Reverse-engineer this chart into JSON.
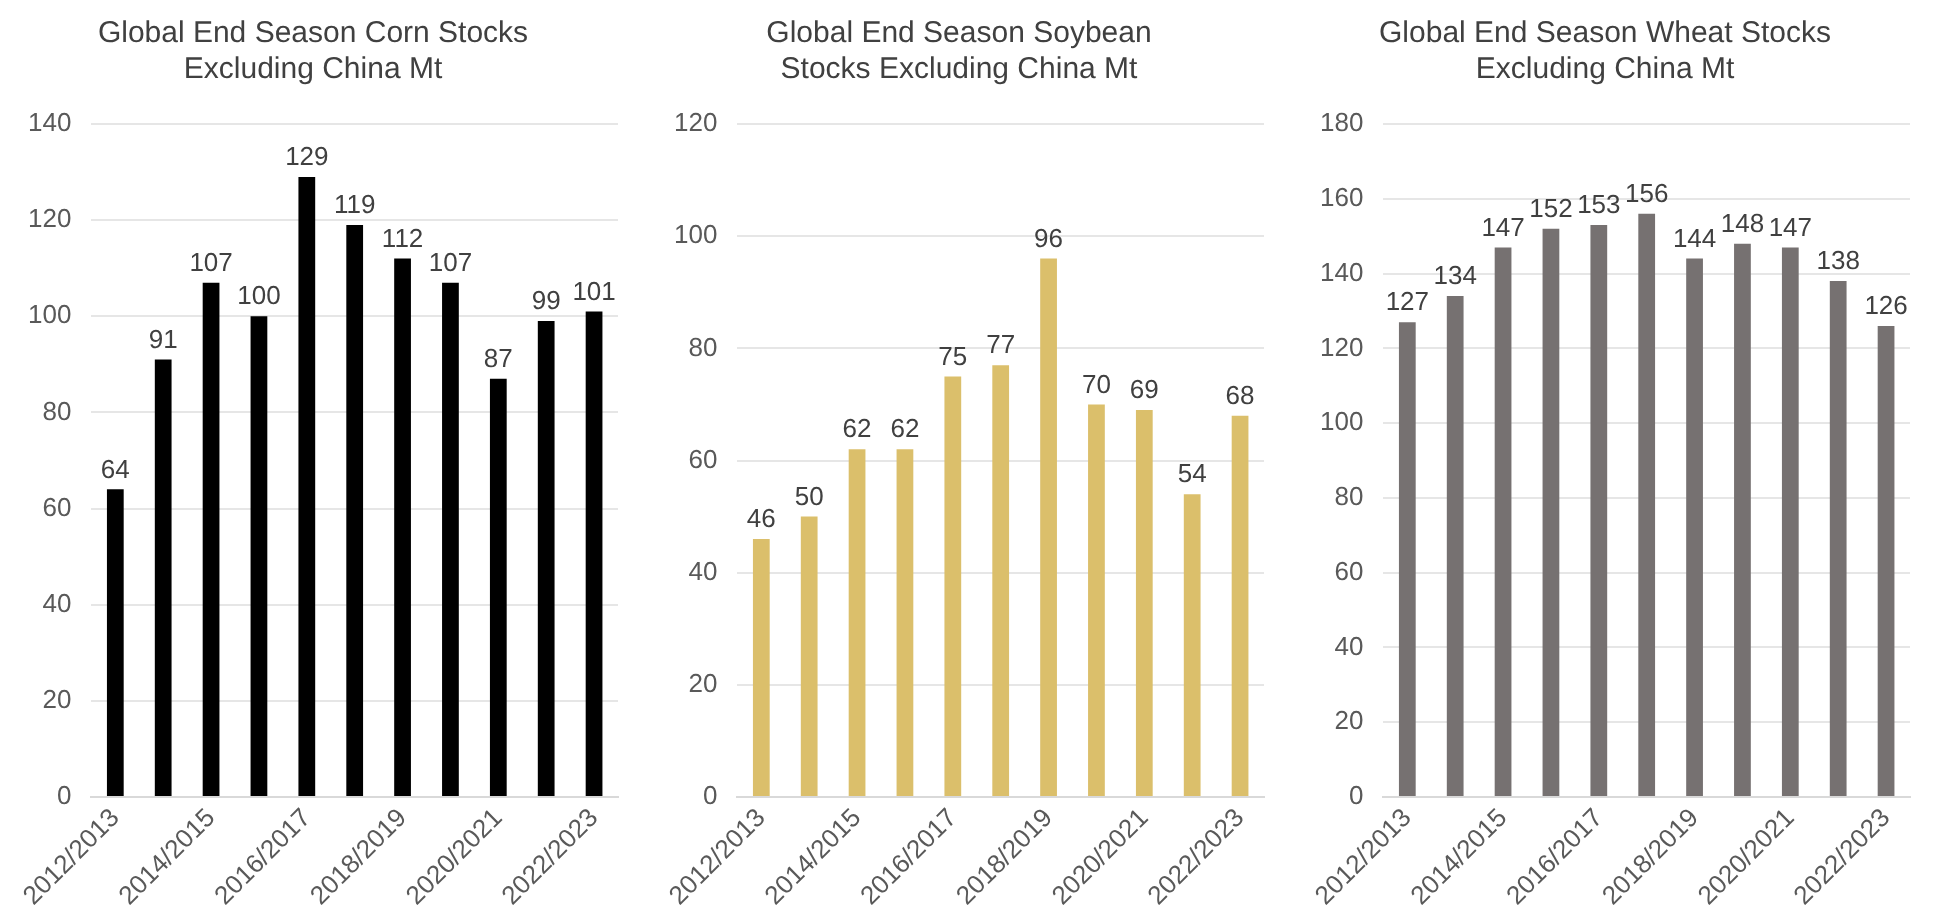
{
  "chart_data": [
    {
      "type": "bar",
      "title": "Global End Season Corn Stocks Excluding China Mt",
      "categories": [
        "2012/2013",
        null,
        "2014/2015",
        null,
        "2016/2017",
        null,
        "2018/2019",
        null,
        "2020/2021",
        null,
        "2022/2023"
      ],
      "values": [
        64,
        91,
        107,
        100,
        129,
        119,
        112,
        107,
        87,
        99,
        101
      ],
      "color": "#000000",
      "ylim": [
        0,
        140
      ],
      "yticks": [
        0,
        20,
        40,
        60,
        80,
        100,
        120,
        140
      ],
      "grid": "y",
      "data_labels": true
    },
    {
      "type": "bar",
      "title": "Global End Season Soybean Stocks Excluding China Mt",
      "categories": [
        "2012/2013",
        null,
        "2014/2015",
        null,
        "2016/2017",
        null,
        "2018/2019",
        null,
        "2020/2021",
        null,
        "2022/2023"
      ],
      "values": [
        46,
        50,
        62,
        62,
        75,
        77,
        96,
        70,
        69,
        54,
        68
      ],
      "color": "#dbbf6b",
      "ylim": [
        0,
        120
      ],
      "yticks": [
        0,
        20,
        40,
        60,
        80,
        100,
        120
      ],
      "grid": "y",
      "data_labels": true
    },
    {
      "type": "bar",
      "title": "Global End Season Wheat Stocks Excluding China Mt",
      "categories": [
        "2012/2013",
        null,
        "2014/2015",
        null,
        "2016/2017",
        null,
        "2018/2019",
        null,
        "2020/2021",
        null,
        "2022/2023"
      ],
      "values": [
        127,
        134,
        147,
        152,
        153,
        156,
        144,
        148,
        147,
        138,
        126
      ],
      "color": "#767171",
      "ylim": [
        0,
        180
      ],
      "yticks": [
        0,
        20,
        40,
        60,
        80,
        100,
        120,
        140,
        160,
        180
      ],
      "grid": "y",
      "data_labels": true
    }
  ]
}
